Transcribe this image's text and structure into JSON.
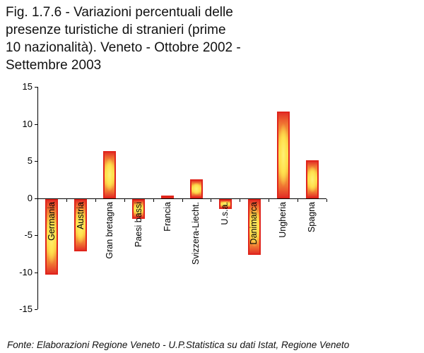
{
  "header": {
    "title_lines": [
      "Fig. 1.7.6 - Variazioni percentuali delle",
      "presenze turistiche di stranieri (prime",
      "10 nazionalità). Veneto - Ottobre 2002 -",
      " Settembre 2003"
    ]
  },
  "chart_data": {
    "type": "bar",
    "title": "Fig. 1.7.6 - Variazioni percentuali delle presenze turistiche di stranieri (prime 10 nazionalità). Veneto - Ottobre 2002 - Settembre 2003",
    "categories": [
      "Germania",
      "Austria",
      "Gran bretagna",
      "Paesi bassi",
      "Francia",
      "Svizzera-Liecht.",
      "U.s.a.",
      "Danimarca",
      "Ungheria",
      "Spagna"
    ],
    "values": [
      -10.2,
      -7.0,
      6.4,
      -2.7,
      0.4,
      2.6,
      -1.3,
      -7.5,
      11.7,
      5.1
    ],
    "yticks": [
      15,
      10,
      5,
      0,
      -5,
      -10,
      -15
    ],
    "ylim": [
      -15,
      15
    ],
    "xlabel": "",
    "ylabel": "",
    "grid": false,
    "legend": "none",
    "colors": {
      "bar_border": "#e0251b",
      "bar_edge": "#e23227",
      "bar_mid": "#f9b83e",
      "bar_center": "#ffe14f",
      "axis": "#000000"
    }
  },
  "footer": {
    "source": "Fonte: Elaborazioni Regione Veneto - U.P.Statistica su dati Istat, Regione Veneto"
  }
}
